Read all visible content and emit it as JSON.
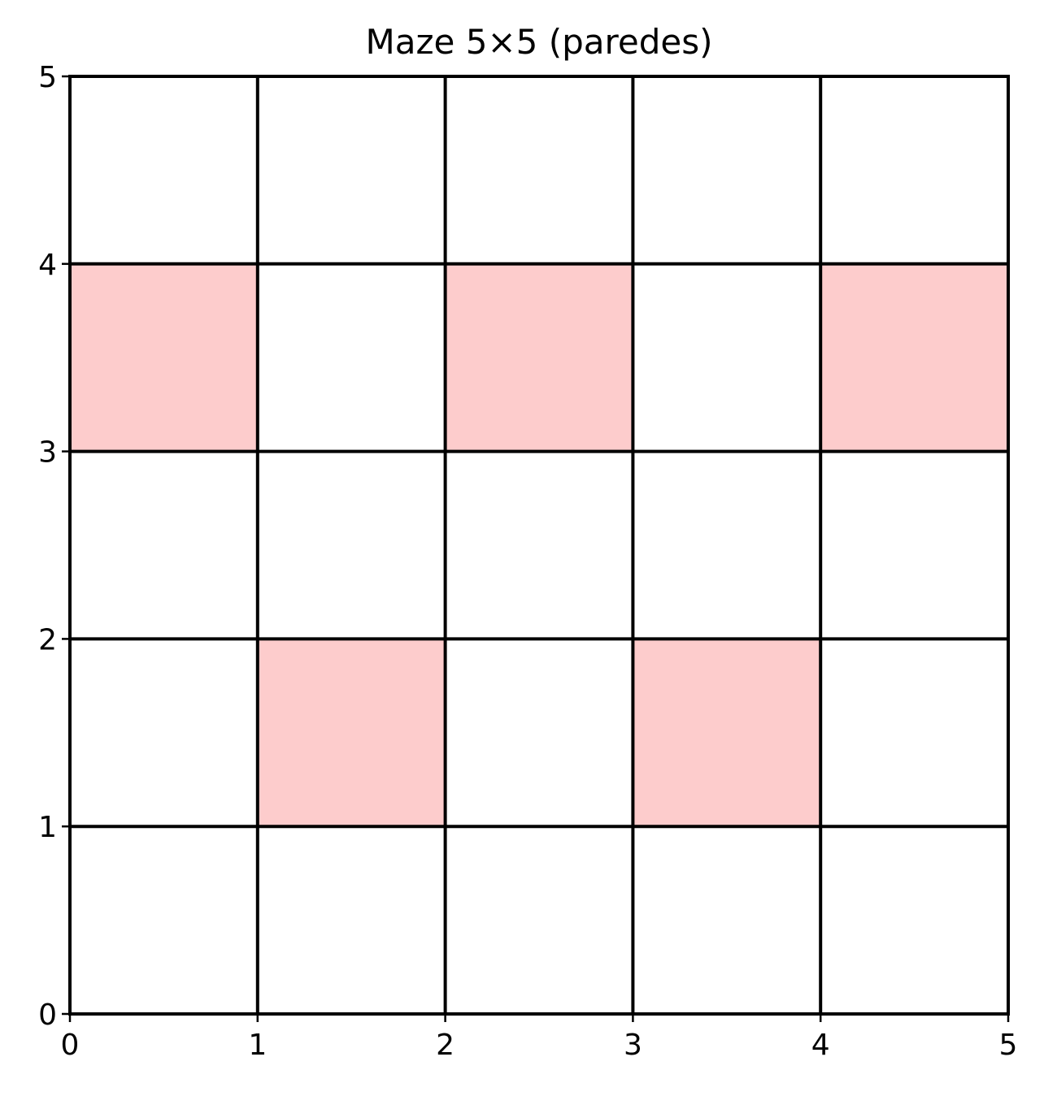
{
  "chart_data": {
    "type": "heatmap",
    "title": "Maze 5×5 (paredes)",
    "xlabel": "",
    "ylabel": "",
    "xlim": [
      0,
      5
    ],
    "ylim": [
      0,
      5
    ],
    "x_ticks": [
      "0",
      "1",
      "2",
      "3",
      "4",
      "5"
    ],
    "y_ticks": [
      "0",
      "1",
      "2",
      "3",
      "4",
      "5"
    ],
    "grid": true,
    "cell_color": "#fdcccc",
    "background_color": "#ffffff",
    "line_color": "#000000",
    "wall_cells": [
      {
        "x": 0,
        "y": 3
      },
      {
        "x": 2,
        "y": 3
      },
      {
        "x": 4,
        "y": 3
      },
      {
        "x": 1,
        "y": 1
      },
      {
        "x": 3,
        "y": 1
      }
    ]
  }
}
